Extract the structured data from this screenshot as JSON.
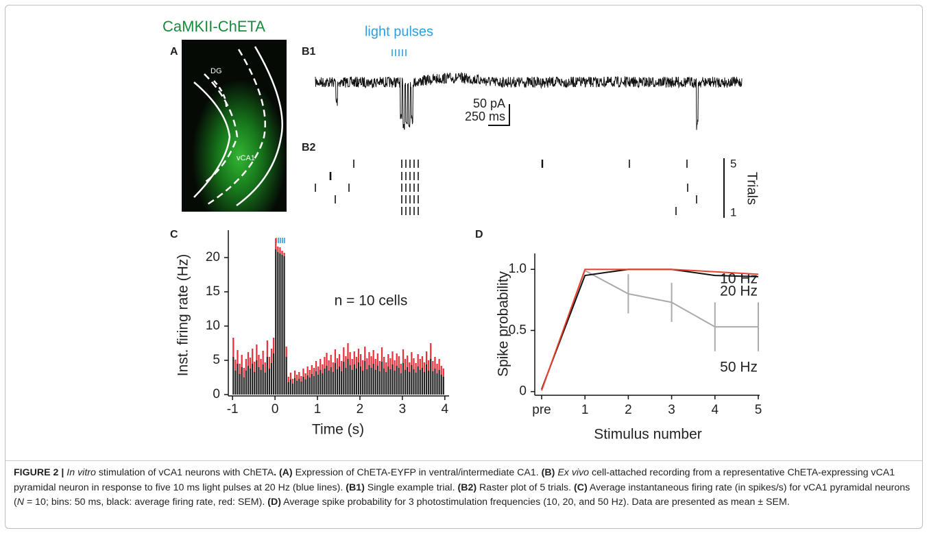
{
  "figure": {
    "construct": "CaMKII-ChETA",
    "stim_label": "light pulses",
    "panels": {
      "a": "A",
      "b1": "B1",
      "b2": "B2",
      "c": "C",
      "d": "D"
    },
    "image_labels": {
      "dg": "DG",
      "vca1": "vCA1"
    },
    "scale_bar": {
      "amplitude": "50 pA",
      "time": "250 ms"
    },
    "raster": {
      "top_trial": "5",
      "bottom_trial": "1",
      "axis_label": "Trials"
    }
  },
  "chart_data": [
    {
      "type": "histogram",
      "ylabel": "Inst. firing rate (Hz)",
      "xlabel": "Time (s)",
      "annotation": "n = 10 cells",
      "bins": [
        -1,
        -0.95,
        -0.9,
        -0.85,
        -0.8,
        -0.75,
        -0.7,
        -0.65,
        -0.6,
        -0.55,
        -0.5,
        -0.45,
        -0.4,
        -0.35,
        -0.3,
        -0.25,
        -0.2,
        -0.15,
        -0.1,
        -0.05,
        0,
        0.05,
        0.1,
        0.15,
        0.2,
        0.25,
        0.3,
        0.35,
        0.4,
        0.45,
        0.5,
        0.55,
        0.6,
        0.65,
        0.7,
        0.75,
        0.8,
        0.85,
        0.9,
        0.95,
        1,
        1.05,
        1.1,
        1.15,
        1.2,
        1.25,
        1.3,
        1.35,
        1.4,
        1.45,
        1.5,
        1.55,
        1.6,
        1.65,
        1.7,
        1.75,
        1.8,
        1.85,
        1.9,
        1.95,
        2,
        2.05,
        2.1,
        2.15,
        2.2,
        2.25,
        2.3,
        2.35,
        2.4,
        2.45,
        2.5,
        2.55,
        2.6,
        2.65,
        2.7,
        2.75,
        2.8,
        2.85,
        2.9,
        2.95,
        3,
        3.05,
        3.1,
        3.15,
        3.2,
        3.25,
        3.3,
        3.35,
        3.4,
        3.45,
        3.5,
        3.55,
        3.6,
        3.65,
        3.7,
        3.75,
        3.8,
        3.85,
        3.9,
        3.95,
        4
      ],
      "values": [
        5.5,
        3.5,
        4.5,
        3,
        4,
        2.5,
        3.5,
        4.2,
        3.8,
        4.5,
        3.3,
        5,
        4,
        3.6,
        4.4,
        3.2,
        5.5,
        3.8,
        4.6,
        6,
        21.2,
        20.8,
        20.6,
        20.4,
        20.2,
        5.5,
        1.8,
        2.2,
        1.6,
        2.4,
        2,
        2.3,
        1.9,
        2.6,
        2.2,
        2.8,
        2.5,
        3,
        2.7,
        3.4,
        2.9,
        3.6,
        3.1,
        3.8,
        4.2,
        3.5,
        4,
        3.3,
        4.6,
        3.7,
        4.1,
        3.4,
        4.8,
        3.9,
        5.2,
        4.3,
        3.6,
        4.4,
        3.8,
        4.7,
        4.1,
        3.5,
        4.9,
        3.7,
        4.3,
        3.9,
        4.5,
        3.6,
        4.2,
        3.4,
        4.8,
        3.8,
        3.3,
        4.1,
        3.7,
        4.4,
        3.5,
        4.2,
        3.9,
        3.1,
        4.6,
        3.6,
        4,
        3.3,
        4.3,
        3.7,
        3.2,
        4.1,
        3.6,
        3.9,
        3.3,
        4.4,
        3.5,
        5.2,
        3.4,
        3.8,
        3.1,
        3.6,
        2.9,
        2.6
      ],
      "errors": [
        2.8,
        1.6,
        2,
        1.5,
        1.8,
        1.4,
        1.7,
        2,
        1.6,
        2.2,
        1.5,
        2.3,
        1.8,
        1.6,
        2,
        1.5,
        2.4,
        1.7,
        2.1,
        2.3,
        1.6,
        0.8,
        0.9,
        0.6,
        0.5,
        1.5,
        0.8,
        1,
        0.7,
        1.1,
        0.9,
        1,
        0.8,
        1.2,
        0.9,
        1.3,
        1.1,
        1.3,
        1.2,
        1.5,
        1.2,
        1.6,
        1.3,
        1.7,
        1.9,
        1.5,
        1.8,
        1.4,
        2,
        1.6,
        1.8,
        1.5,
        2.1,
        1.7,
        2.3,
        1.9,
        1.6,
        1.9,
        1.7,
        2,
        1.8,
        1.5,
        2.1,
        1.6,
        1.9,
        1.7,
        2,
        1.6,
        1.8,
        1.5,
        2.1,
        1.7,
        1.4,
        1.8,
        1.6,
        1.9,
        1.5,
        1.8,
        1.7,
        1.4,
        2,
        1.6,
        1.7,
        1.4,
        1.9,
        1.6,
        1.4,
        1.8,
        1.6,
        1.7,
        1.4,
        1.9,
        1.5,
        2.3,
        1.5,
        1.7,
        1.4,
        1.6,
        1.3,
        1.2
      ],
      "color": "#222222",
      "error_color": "#e8303a",
      "xlim": [
        -1.1,
        4.1
      ],
      "ylim": [
        -0.2,
        24
      ],
      "xticks": [
        -1,
        0,
        1,
        2,
        3,
        4
      ],
      "yticks": [
        0,
        5,
        10,
        15,
        20
      ]
    },
    {
      "type": "line",
      "ylabel": "Spike probability",
      "xlabel": "Stimulus number",
      "categories": [
        "pre",
        "1",
        "2",
        "3",
        "4",
        "5"
      ],
      "series": [
        {
          "name": "50 Hz",
          "color": "#aaaaaa",
          "values": [
            0.01,
            0.99,
            0.8,
            0.73,
            0.53,
            0.53
          ],
          "errors": [
            null,
            null,
            0.16,
            0.16,
            0.2,
            0.2
          ]
        },
        {
          "name": "20 Hz",
          "color": "#111111",
          "values": [
            0.02,
            0.95,
            1,
            1,
            0.95,
            0.94
          ]
        },
        {
          "name": "10 Hz",
          "color": "#e8412c",
          "values": [
            0.01,
            1,
            1,
            1,
            0.98,
            0.96
          ]
        }
      ],
      "ylim": [
        -0.03,
        1.13
      ],
      "yticks": [
        0,
        0.5,
        {
          "value": 1,
          "label": "1.0"
        }
      ]
    }
  ],
  "caption": [
    "FIGURE 2 |",
    "In vitro",
    "stimulation of vCA1 neurons with ChETA",
    ". (A)",
    "Expression of ChETA-EYFP in ventral/intermediate CA1.",
    "(B)",
    "Ex vivo",
    "cell-attached recording from a representative ChETA-expressing vCA1 pyramidal neuron in response to five 10 ms light pulses at 20 Hz (blue lines).",
    "(B1)",
    "Single example trial.",
    "(B2)",
    "Raster plot of 5 trials.",
    "(C)",
    "Average instantaneous firing rate (in spikes/s) for vCA1 pyramidal neurons (",
    "N",
    "= 10; bins: 50 ms, black: average firing rate, red: SEM).",
    "(D)",
    "Average spike probability for 3 photostimulation frequencies (10, 20, and 50 Hz). Data are presented as mean ± SEM."
  ]
}
